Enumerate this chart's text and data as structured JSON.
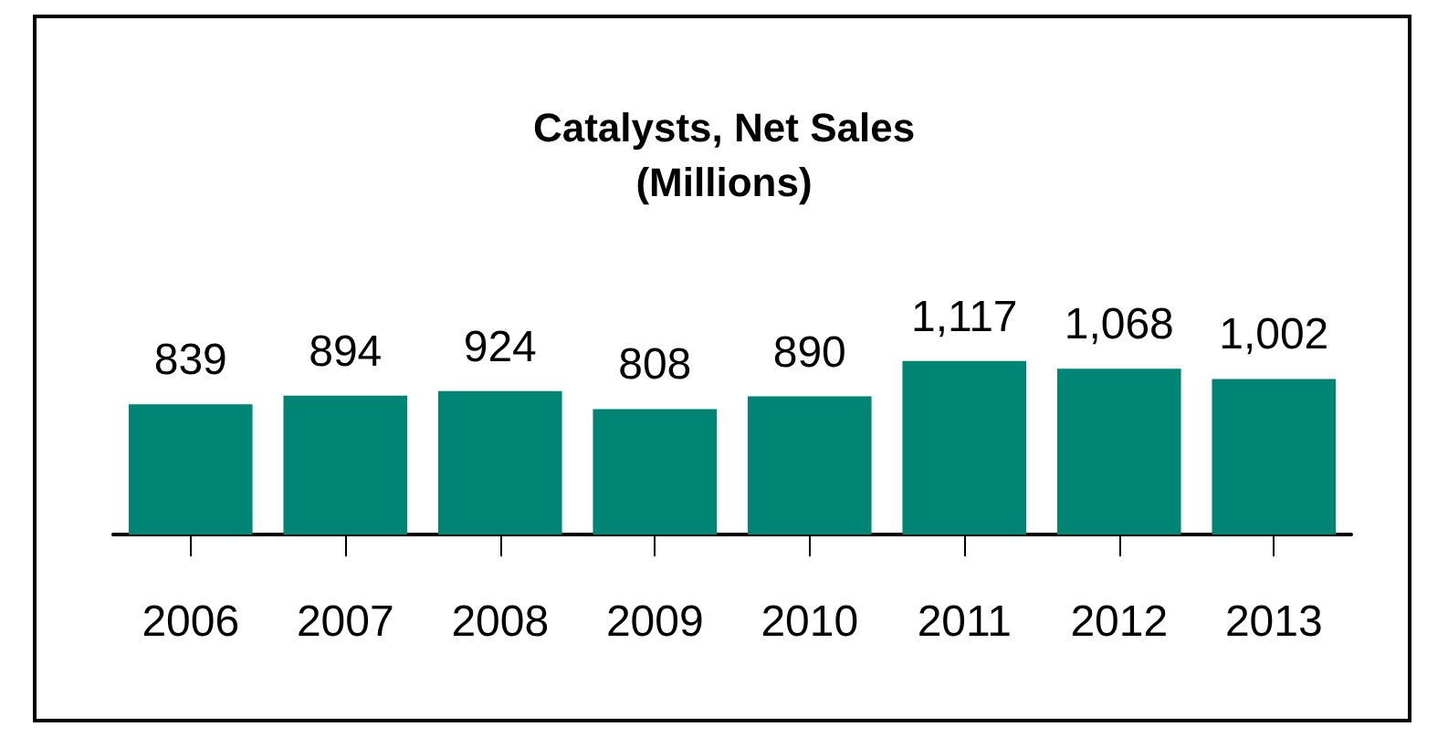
{
  "chart_data": {
    "type": "bar",
    "title": "Catalysts, Net Sales\n(Millions)",
    "categories": [
      "2006",
      "2007",
      "2008",
      "2009",
      "2010",
      "2011",
      "2012",
      "2013"
    ],
    "values": [
      839,
      894,
      924,
      808,
      890,
      1117,
      1068,
      1002
    ],
    "value_labels": [
      "839",
      "894",
      "924",
      "808",
      "890",
      "1,117",
      "1,068",
      "1,002"
    ],
    "color": "#008575"
  }
}
